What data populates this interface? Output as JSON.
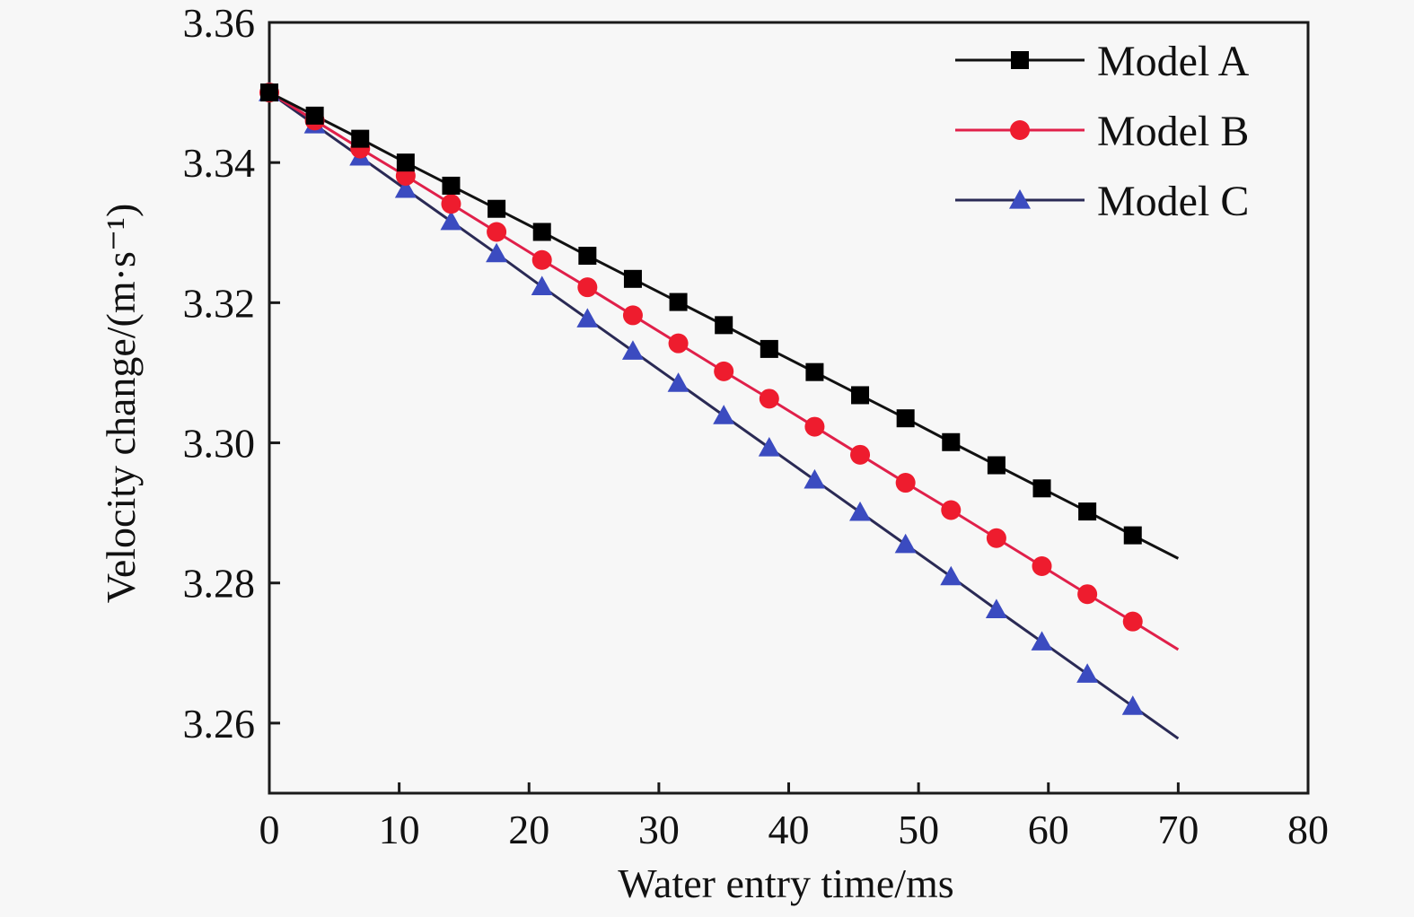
{
  "chart_data": {
    "type": "line",
    "title": "",
    "xlabel": "Water entry time/ms",
    "ylabel": "Velocity change/(m·s⁻¹)",
    "xlim": [
      0,
      80
    ],
    "ylim": [
      3.25,
      3.36
    ],
    "xticks": [
      0,
      10,
      20,
      30,
      40,
      50,
      60,
      70,
      80
    ],
    "xtick_labels": [
      "0",
      "10",
      "20",
      "30",
      "40",
      "50",
      "60",
      "70",
      "80"
    ],
    "yticks": [
      3.26,
      3.28,
      3.3,
      3.32,
      3.34,
      3.36
    ],
    "ytick_labels": [
      "3.26",
      "3.28",
      "3.30",
      "3.32",
      "3.34",
      "3.36"
    ],
    "grid": false,
    "legend_position": "top-right",
    "line_x": [
      0,
      3.5,
      7,
      10.5,
      14,
      17.5,
      21,
      24.5,
      28,
      31.5,
      35,
      38.5,
      42,
      45.5,
      49,
      52.5,
      56,
      59.5,
      63,
      66.5,
      70
    ],
    "marker_count": 20,
    "series": [
      {
        "name": "Model A",
        "marker": "square",
        "line_color": "#111111",
        "marker_color": "#000000",
        "values": [
          3.35,
          3.3467,
          3.3434,
          3.34,
          3.3367,
          3.3334,
          3.3301,
          3.3267,
          3.3234,
          3.3201,
          3.3168,
          3.3134,
          3.3101,
          3.3068,
          3.3035,
          3.3001,
          3.2968,
          3.2935,
          3.2902,
          3.2868,
          3.2835
        ]
      },
      {
        "name": "Model B",
        "marker": "circle",
        "line_color": "#e0204a",
        "marker_color": "#ee1c2e",
        "values": [
          3.35,
          3.346,
          3.342,
          3.3381,
          3.3341,
          3.3301,
          3.3261,
          3.3222,
          3.3182,
          3.3142,
          3.3102,
          3.3063,
          3.3023,
          3.2983,
          3.2943,
          3.2904,
          3.2864,
          3.2824,
          3.2784,
          3.2745,
          3.2705
        ]
      },
      {
        "name": "Model C",
        "marker": "triangle",
        "line_color": "#2a2a55",
        "marker_color": "#3b4bc0",
        "values": [
          3.35,
          3.3454,
          3.3408,
          3.3362,
          3.3316,
          3.327,
          3.3223,
          3.3177,
          3.3131,
          3.3085,
          3.3039,
          3.2993,
          3.2947,
          3.2901,
          3.2855,
          3.2809,
          3.2762,
          3.2716,
          3.267,
          3.2624,
          3.2578
        ]
      }
    ]
  }
}
